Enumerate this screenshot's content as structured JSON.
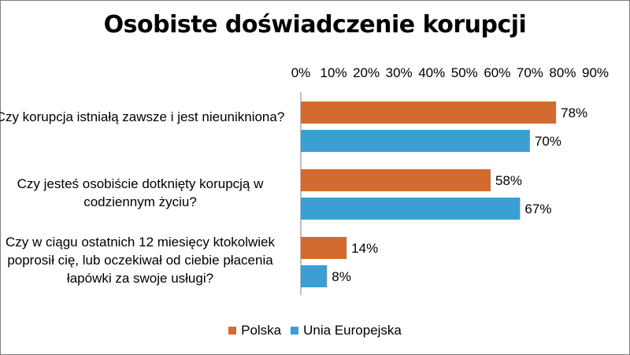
{
  "chart_data": {
    "type": "bar",
    "orientation": "horizontal",
    "title": "Osobiste doświadczenie korupcji",
    "categories": [
      "Czy korupcja istniałą zawsze i jest nieunikniona?",
      "Czy jesteś osobiście dotknięty korupcją w codziennym życiu?",
      "Czy w ciągu ostatnich 12 miesięcy ktokolwiek poprosił cię, lub oczekiwał od ciebie płacenia łapówki za swoje usługi?"
    ],
    "series": [
      {
        "name": "Polska",
        "color": "#d36a2f",
        "values": [
          78,
          58,
          14
        ],
        "labels": [
          "78%",
          "58%",
          "14%"
        ]
      },
      {
        "name": "Unia Europejska",
        "color": "#3c9fd3",
        "values": [
          70,
          67,
          8
        ],
        "labels": [
          "70%",
          "67%",
          "8%"
        ]
      }
    ],
    "xlim": [
      0,
      90
    ],
    "ticks": [
      "0%",
      "10%",
      "20%",
      "30%",
      "40%",
      "50%",
      "60%",
      "70%",
      "80%",
      "90%"
    ],
    "xlabel": "",
    "ylabel": "",
    "grid": false,
    "legend": "bottom"
  }
}
